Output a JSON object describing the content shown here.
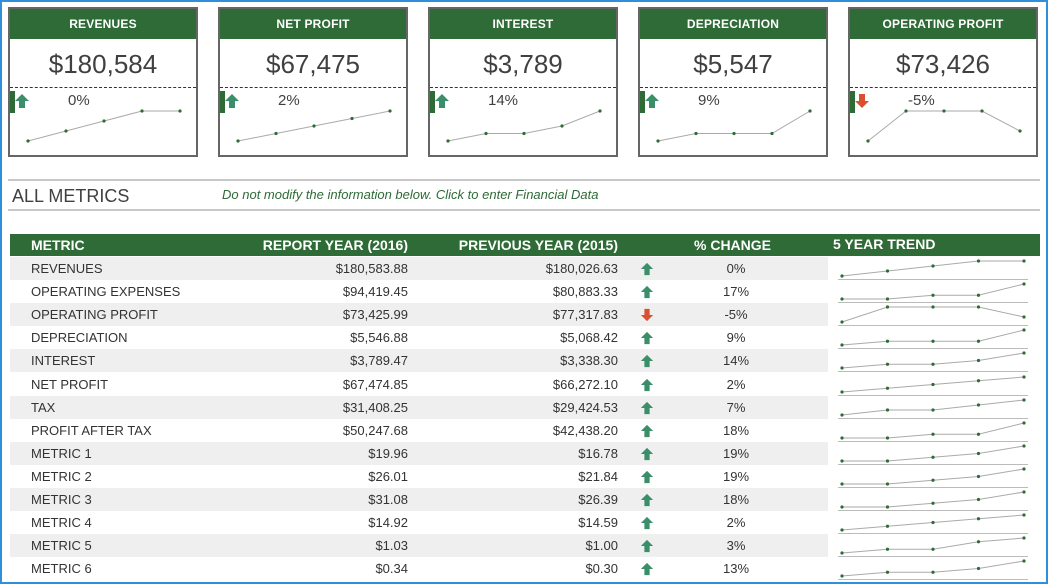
{
  "kpi_cards": [
    {
      "title": "REVENUES",
      "value": "$180,584",
      "change": "0%",
      "direction": "up",
      "trend": [
        1,
        2,
        3,
        4,
        4
      ]
    },
    {
      "title": "NET PROFIT",
      "value": "$67,475",
      "change": "2%",
      "direction": "up",
      "trend": [
        1,
        2,
        3,
        4,
        5
      ]
    },
    {
      "title": "INTEREST",
      "value": "$3,789",
      "change": "14%",
      "direction": "up",
      "trend": [
        1,
        2,
        2,
        3,
        5
      ]
    },
    {
      "title": "DEPRECIATION",
      "value": "$5,547",
      "change": "9%",
      "direction": "up",
      "trend": [
        1,
        2,
        2,
        2,
        5
      ]
    },
    {
      "title": "OPERATING PROFIT",
      "value": "$73,426",
      "change": "-5%",
      "direction": "down",
      "trend": [
        1,
        4,
        4,
        4,
        2
      ]
    }
  ],
  "section": {
    "title": "ALL METRICS",
    "note": "Do not modify the information below. Click to enter Financial Data"
  },
  "table": {
    "headers": {
      "metric": "METRIC",
      "report": "REPORT YEAR (2016)",
      "previous": "PREVIOUS YEAR (2015)",
      "change": "% CHANGE",
      "trend": "5 YEAR TREND"
    },
    "rows": [
      {
        "metric": "REVENUES",
        "report": "$180,583.88",
        "previous": "$180,026.63",
        "direction": "up",
        "change": "0%",
        "trend": [
          1,
          2,
          3,
          4,
          4
        ]
      },
      {
        "metric": "OPERATING EXPENSES",
        "report": "$94,419.45",
        "previous": "$80,883.33",
        "direction": "up",
        "change": "17%",
        "trend": [
          1,
          1,
          2,
          2,
          5
        ]
      },
      {
        "metric": "OPERATING PROFIT",
        "report": "$73,425.99",
        "previous": "$77,317.83",
        "direction": "down",
        "change": "-5%",
        "trend": [
          1,
          4,
          4,
          4,
          2
        ]
      },
      {
        "metric": "DEPRECIATION",
        "report": "$5,546.88",
        "previous": "$5,068.42",
        "direction": "up",
        "change": "9%",
        "trend": [
          1,
          2,
          2,
          2,
          5
        ]
      },
      {
        "metric": "INTEREST",
        "report": "$3,789.47",
        "previous": "$3,338.30",
        "direction": "up",
        "change": "14%",
        "trend": [
          1,
          2,
          2,
          3,
          5
        ]
      },
      {
        "metric": "NET PROFIT",
        "report": "$67,474.85",
        "previous": "$66,272.10",
        "direction": "up",
        "change": "2%",
        "trend": [
          1,
          2,
          3,
          4,
          5
        ]
      },
      {
        "metric": "TAX",
        "report": "$31,408.25",
        "previous": "$29,424.53",
        "direction": "up",
        "change": "7%",
        "trend": [
          1,
          2,
          2,
          3,
          4
        ]
      },
      {
        "metric": "PROFIT AFTER TAX",
        "report": "$50,247.68",
        "previous": "$42,438.20",
        "direction": "up",
        "change": "18%",
        "trend": [
          1,
          1,
          2,
          2,
          5
        ]
      },
      {
        "metric": "METRIC 1",
        "report": "$19.96",
        "previous": "$16.78",
        "direction": "up",
        "change": "19%",
        "trend": [
          1,
          1,
          2,
          3,
          5
        ]
      },
      {
        "metric": "METRIC 2",
        "report": "$26.01",
        "previous": "$21.84",
        "direction": "up",
        "change": "19%",
        "trend": [
          1,
          1,
          2,
          3,
          5
        ]
      },
      {
        "metric": "METRIC 3",
        "report": "$31.08",
        "previous": "$26.39",
        "direction": "up",
        "change": "18%",
        "trend": [
          1,
          1,
          2,
          3,
          5
        ]
      },
      {
        "metric": "METRIC 4",
        "report": "$14.92",
        "previous": "$14.59",
        "direction": "up",
        "change": "2%",
        "trend": [
          1,
          2,
          3,
          4,
          5
        ]
      },
      {
        "metric": "METRIC 5",
        "report": "$1.03",
        "previous": "$1.00",
        "direction": "up",
        "change": "3%",
        "trend": [
          1,
          2,
          2,
          4,
          5
        ]
      },
      {
        "metric": "METRIC 6",
        "report": "$0.34",
        "previous": "$0.30",
        "direction": "up",
        "change": "13%",
        "trend": [
          1,
          2,
          2,
          3,
          5
        ]
      }
    ]
  },
  "colors": {
    "header_green": "#2e6b36",
    "up_arrow": "#3a8f6a",
    "down_arrow": "#d94f30",
    "spark_line": "#aaaaaa",
    "spark_dot": "#2e6b36",
    "frame_border": "#2f8fd8"
  }
}
